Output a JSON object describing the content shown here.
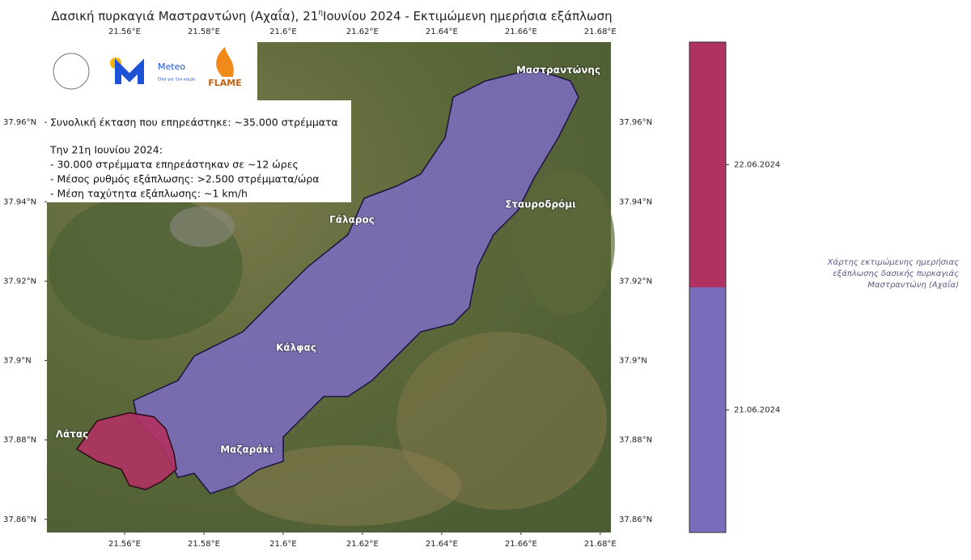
{
  "title": {
    "text": "Δασική πυρκαγιά Μαστραντώνη (Αχαΐα), 21",
    "superscript": "η",
    "rest": "Ιουνίου 2024 - Εκτιμώμενη ημερήσια εξάπλωση"
  },
  "logos": {
    "meteo": "Meteo",
    "meteo_tagline": "Όλα για τον καιρό",
    "flame": "FLAME"
  },
  "map": {
    "xlim": [
      21.5404,
      21.6827
    ],
    "ylim": [
      37.8567,
      37.9802
    ],
    "xticks": [
      {
        "value": 21.56,
        "label": "21.56°E"
      },
      {
        "value": 21.58,
        "label": "21.58°E"
      },
      {
        "value": 21.6,
        "label": "21.6°E"
      },
      {
        "value": 21.62,
        "label": "21.62°E"
      },
      {
        "value": 21.64,
        "label": "21.64°E"
      },
      {
        "value": 21.66,
        "label": "21.66°E"
      },
      {
        "value": 21.68,
        "label": "21.68°E"
      }
    ],
    "yticks": [
      {
        "value": 37.96,
        "label": "37.96°N"
      },
      {
        "value": 37.94,
        "label": "37.94°N"
      },
      {
        "value": 37.92,
        "label": "37.92°N"
      },
      {
        "value": 37.9,
        "label": "37.9°N"
      },
      {
        "value": 37.88,
        "label": "37.88°N"
      },
      {
        "value": 37.86,
        "label": "37.86°N"
      }
    ]
  },
  "info": {
    "total": "Συνολική έκταση που επηρεάστηκε: ~35.000 στρέμματα",
    "heading": "Την 21η Ιουνίου 2024:",
    "items": [
      "- 30.000 στρέμματα επηρεάστηκαν σε ~12 ώρες",
      "- Μέσος ρυθμός εξάπλωσης: >2.500 στρέμματα/ώρα",
      "- Μέση ταχύτητα εξάπλωσης: ~1 km/h"
    ]
  },
  "places": [
    "Μαστραντώνης",
    "Σταυροδρόμι",
    "Γάλαρος",
    "Κάλφας",
    "Λάτας",
    "Μαζαράκι"
  ],
  "colorbar": {
    "entries": [
      {
        "label": "22.06.2024",
        "color": "#b03262"
      },
      {
        "label": "21.06.2024",
        "color": "#7b6bbb"
      }
    ],
    "caption": "Χάρτης εκτιμώμενης ημερήσιας εξάπλωσης δασικής πυρκαγιάς Μαστραντώνη (Αχαΐα)"
  }
}
